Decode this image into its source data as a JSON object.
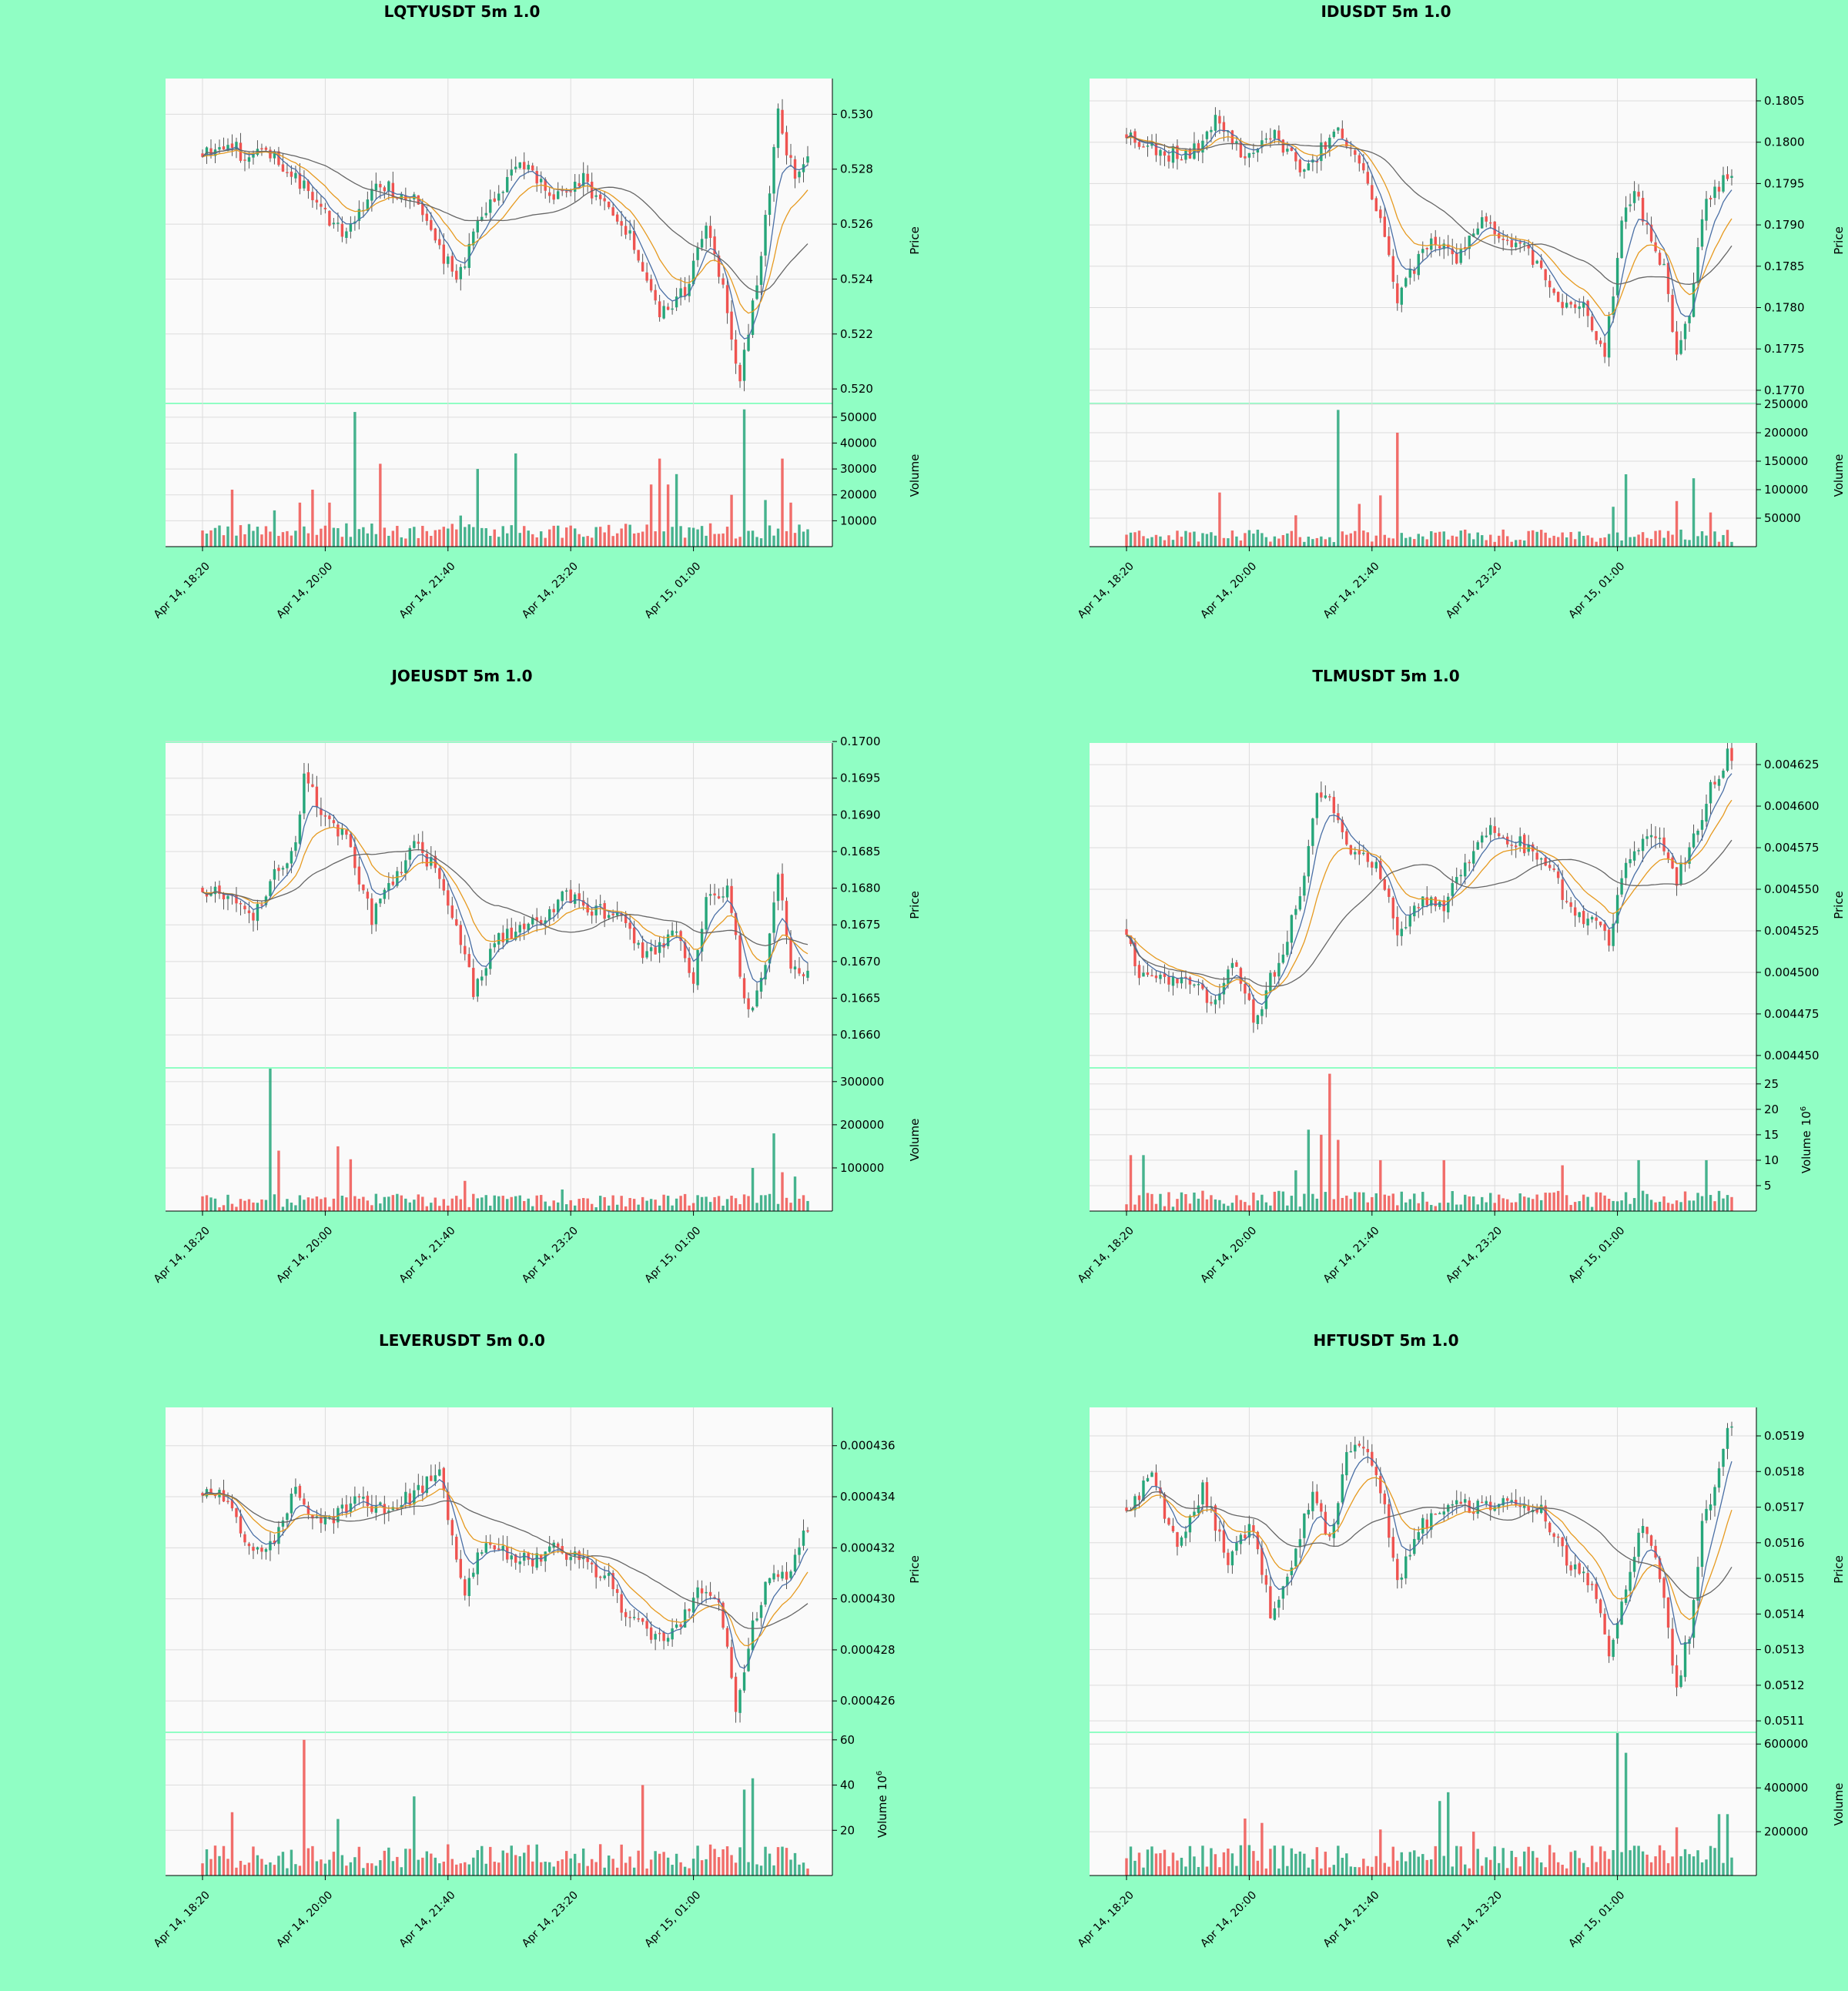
{
  "chart_data": [
    {
      "type": "candlestick",
      "title": "LQTYUSDT 5m 1.0",
      "ylabel": "Price",
      "vol_label": "Volume",
      "x_ticks": [
        "Apr 14, 18:20",
        "Apr 14, 20:00",
        "Apr 14, 21:40",
        "Apr 14, 23:20",
        "Apr 15, 01:00"
      ],
      "price_ylim": [
        0.5195,
        0.5313
      ],
      "price_ticks": [
        "0.520",
        "0.522",
        "0.524",
        "0.526",
        "0.528",
        "0.530"
      ],
      "vol_ylim": [
        0,
        55000
      ],
      "vol_ticks": [
        "10000",
        "20000",
        "30000",
        "40000",
        "50000"
      ],
      "volume_exponent": "",
      "price_path": [
        [
          0,
          0.5286
        ],
        [
          6,
          0.529
        ],
        [
          11,
          0.5283
        ],
        [
          14,
          0.529
        ],
        [
          20,
          0.528
        ],
        [
          27,
          0.5268
        ],
        [
          33,
          0.5256
        ],
        [
          42,
          0.5275
        ],
        [
          50,
          0.5268
        ],
        [
          60,
          0.524
        ],
        [
          66,
          0.5262
        ],
        [
          75,
          0.5282
        ],
        [
          84,
          0.527
        ],
        [
          90,
          0.5276
        ],
        [
          101,
          0.5255
        ],
        [
          108,
          0.5229
        ],
        [
          114,
          0.5235
        ],
        [
          119,
          0.526
        ],
        [
          123,
          0.5238
        ],
        [
          127,
          0.5203
        ],
        [
          132,
          0.5248
        ],
        [
          136,
          0.53
        ],
        [
          140,
          0.5275
        ],
        [
          142,
          0.5282
        ]
      ],
      "volume_spikes": [
        [
          7,
          22000
        ],
        [
          17,
          14000
        ],
        [
          23,
          17000
        ],
        [
          26,
          22000
        ],
        [
          30,
          17000
        ],
        [
          36,
          52000
        ],
        [
          42,
          32000
        ],
        [
          61,
          12000
        ],
        [
          65,
          30000
        ],
        [
          74,
          36000
        ],
        [
          106,
          24000
        ],
        [
          108,
          34000
        ],
        [
          110,
          24000
        ],
        [
          112,
          28000
        ],
        [
          125,
          20000
        ],
        [
          128,
          53000
        ],
        [
          133,
          18000
        ],
        [
          137,
          34000
        ],
        [
          139,
          17000
        ]
      ],
      "vol_base": [
        3000,
        9000
      ],
      "seed": 11
    },
    {
      "type": "candlestick",
      "title": "IDUSDT 5m 1.0",
      "ylabel": "Price",
      "vol_label": "Volume",
      "x_ticks": [
        "Apr 14, 18:20",
        "Apr 14, 20:00",
        "Apr 14, 21:40",
        "Apr 14, 23:20",
        "Apr 15, 01:00"
      ],
      "price_ylim": [
        0.17685,
        0.18077
      ],
      "price_ticks": [
        "0.1770",
        "0.1775",
        "0.1780",
        "0.1785",
        "0.1790",
        "0.1795",
        "0.1800",
        "0.1805"
      ],
      "vol_ylim": [
        0,
        250000
      ],
      "vol_ticks": [
        "50000",
        "100000",
        "150000",
        "200000",
        "250000"
      ],
      "volume_exponent": "",
      "price_path": [
        [
          0,
          0.1801
        ],
        [
          10,
          0.17985
        ],
        [
          16,
          0.1799
        ],
        [
          22,
          0.1803
        ],
        [
          28,
          0.1798
        ],
        [
          35,
          0.1801
        ],
        [
          42,
          0.1796
        ],
        [
          46,
          0.1799
        ],
        [
          50,
          0.1802
        ],
        [
          56,
          0.1797
        ],
        [
          60,
          0.179
        ],
        [
          64,
          0.1781
        ],
        [
          72,
          0.1789
        ],
        [
          78,
          0.1786
        ],
        [
          84,
          0.1791
        ],
        [
          90,
          0.1788
        ],
        [
          95,
          0.1787
        ],
        [
          101,
          0.1781
        ],
        [
          108,
          0.178
        ],
        [
          113,
          0.17745
        ],
        [
          117,
          0.179
        ],
        [
          120,
          0.1794
        ],
        [
          124,
          0.1788
        ],
        [
          127,
          0.1785
        ],
        [
          130,
          0.17745
        ],
        [
          133,
          0.178
        ],
        [
          137,
          0.1793
        ],
        [
          142,
          0.1796
        ]
      ],
      "volume_spikes": [
        [
          22,
          95000
        ],
        [
          40,
          55000
        ],
        [
          50,
          240000
        ],
        [
          55,
          75000
        ],
        [
          60,
          90000
        ],
        [
          64,
          200000
        ],
        [
          115,
          70000
        ],
        [
          118,
          127000
        ],
        [
          130,
          80000
        ],
        [
          134,
          120000
        ],
        [
          138,
          60000
        ]
      ],
      "vol_base": [
        8000,
        30000
      ],
      "seed": 23
    },
    {
      "type": "candlestick",
      "title": "JOEUSDT 5m 1.0",
      "ylabel": "Price",
      "vol_label": "Volume",
      "x_ticks": [
        "Apr 14, 18:20",
        "Apr 14, 20:00",
        "Apr 14, 21:40",
        "Apr 14, 23:20",
        "Apr 15, 01:00"
      ],
      "price_ylim": [
        0.16556,
        0.16998
      ],
      "price_ticks": [
        "0.1660",
        "0.1665",
        "0.1670",
        "0.1675",
        "0.1680",
        "0.1685",
        "0.1690",
        "0.1695",
        "0.1700"
      ],
      "vol_ylim": [
        0,
        330000
      ],
      "vol_ticks": [
        "100000",
        "200000",
        "300000"
      ],
      "volume_exponent": "",
      "price_path": [
        [
          0,
          0.168
        ],
        [
          8,
          0.1679
        ],
        [
          12,
          0.1676
        ],
        [
          16,
          0.1681
        ],
        [
          22,
          0.1686
        ],
        [
          24,
          0.1696
        ],
        [
          28,
          0.169
        ],
        [
          34,
          0.1687
        ],
        [
          40,
          0.1676
        ],
        [
          45,
          0.1681
        ],
        [
          50,
          0.1686
        ],
        [
          56,
          0.1682
        ],
        [
          62,
          0.1671
        ],
        [
          64,
          0.1666
        ],
        [
          70,
          0.1673
        ],
        [
          78,
          0.1675
        ],
        [
          86,
          0.1679
        ],
        [
          92,
          0.1677
        ],
        [
          100,
          0.1676
        ],
        [
          104,
          0.167
        ],
        [
          112,
          0.1674
        ],
        [
          116,
          0.1668
        ],
        [
          119,
          0.1679
        ],
        [
          124,
          0.168
        ],
        [
          127,
          0.1669
        ],
        [
          129,
          0.1663
        ],
        [
          133,
          0.167
        ],
        [
          136,
          0.1682
        ],
        [
          139,
          0.167
        ],
        [
          142,
          0.1669
        ]
      ],
      "volume_spikes": [
        [
          16,
          330000
        ],
        [
          18,
          140000
        ],
        [
          32,
          150000
        ],
        [
          35,
          120000
        ],
        [
          62,
          70000
        ],
        [
          85,
          50000
        ],
        [
          130,
          100000
        ],
        [
          135,
          180000
        ],
        [
          137,
          90000
        ],
        [
          140,
          80000
        ]
      ],
      "vol_base": [
        8000,
        40000
      ],
      "seed": 37
    },
    {
      "type": "candlestick",
      "title": "TLMUSDT 5m 1.0",
      "ylabel": "Price",
      "vol_label": "Volume",
      "x_ticks": [
        "Apr 14, 18:20",
        "Apr 14, 20:00",
        "Apr 14, 21:40",
        "Apr 14, 23:20",
        "Apr 15, 01:00"
      ],
      "price_ylim": [
        0.004443,
        0.004638
      ],
      "price_ticks": [
        "0.004450",
        "0.004475",
        "0.004500",
        "0.004525",
        "0.004550",
        "0.004575",
        "0.004600",
        "0.004625"
      ],
      "vol_ylim": [
        0,
        28
      ],
      "vol_ticks": [
        "5",
        "10",
        "15",
        "20",
        "25"
      ],
      "volume_exponent": "6",
      "price_path": [
        [
          0,
          0.004525
        ],
        [
          3,
          0.004495
        ],
        [
          10,
          0.004495
        ],
        [
          16,
          0.00449
        ],
        [
          20,
          0.004485
        ],
        [
          26,
          0.004505
        ],
        [
          30,
          0.00447
        ],
        [
          34,
          0.004495
        ],
        [
          38,
          0.00452
        ],
        [
          42,
          0.00456
        ],
        [
          45,
          0.00461
        ],
        [
          49,
          0.0046
        ],
        [
          52,
          0.004575
        ],
        [
          56,
          0.00457
        ],
        [
          60,
          0.00456
        ],
        [
          64,
          0.004525
        ],
        [
          70,
          0.004545
        ],
        [
          75,
          0.00454
        ],
        [
          80,
          0.004565
        ],
        [
          86,
          0.004585
        ],
        [
          92,
          0.00458
        ],
        [
          100,
          0.004565
        ],
        [
          104,
          0.00454
        ],
        [
          110,
          0.00453
        ],
        [
          114,
          0.00452
        ],
        [
          118,
          0.004565
        ],
        [
          123,
          0.004585
        ],
        [
          126,
          0.00458
        ],
        [
          130,
          0.004555
        ],
        [
          134,
          0.00458
        ],
        [
          138,
          0.00461
        ],
        [
          142,
          0.00463
        ]
      ],
      "volume_spikes": [
        [
          1,
          11000000
        ],
        [
          4,
          11000000
        ],
        [
          40,
          8000000
        ],
        [
          43,
          16000000
        ],
        [
          46,
          15000000
        ],
        [
          48,
          27000000
        ],
        [
          50,
          14000000
        ],
        [
          60,
          10000000
        ],
        [
          75,
          10000000
        ],
        [
          103,
          9000000
        ],
        [
          121,
          10000000
        ],
        [
          137,
          10000000
        ]
      ],
      "vol_base": [
        800000,
        4000000
      ],
      "seed": 41
    },
    {
      "type": "candlestick",
      "title": "LEVERUSDT 5m 0.0",
      "ylabel": "Price",
      "vol_label": "Volume",
      "x_ticks": [
        "Apr 14, 18:20",
        "Apr 14, 20:00",
        "Apr 14, 21:40",
        "Apr 14, 23:20",
        "Apr 15, 01:00"
      ],
      "price_ylim": [
        0.0004248,
        0.0004375
      ],
      "price_ticks": [
        "0.000426",
        "0.000428",
        "0.000430",
        "0.000432",
        "0.000434",
        "0.000436"
      ],
      "vol_ylim": [
        0,
        63
      ],
      "vol_ticks": [
        "20",
        "40",
        "60"
      ],
      "volume_exponent": "6",
      "price_path": [
        [
          0,
          0.0004342
        ],
        [
          6,
          0.000434
        ],
        [
          10,
          0.0004325
        ],
        [
          14,
          0.0004318
        ],
        [
          18,
          0.0004325
        ],
        [
          22,
          0.0004345
        ],
        [
          26,
          0.000433
        ],
        [
          30,
          0.000433
        ],
        [
          36,
          0.000434
        ],
        [
          42,
          0.0004335
        ],
        [
          50,
          0.000434
        ],
        [
          56,
          0.0004352
        ],
        [
          58,
          0.000433
        ],
        [
          62,
          0.00043
        ],
        [
          66,
          0.000432
        ],
        [
          72,
          0.0004318
        ],
        [
          78,
          0.0004315
        ],
        [
          84,
          0.000432
        ],
        [
          90,
          0.0004315
        ],
        [
          96,
          0.0004308
        ],
        [
          100,
          0.0004292
        ],
        [
          104,
          0.0004288
        ],
        [
          110,
          0.0004282
        ],
        [
          114,
          0.0004295
        ],
        [
          118,
          0.0004305
        ],
        [
          122,
          0.0004298
        ],
        [
          124,
          0.000428
        ],
        [
          126,
          0.0004255
        ],
        [
          130,
          0.000429
        ],
        [
          134,
          0.000431
        ],
        [
          138,
          0.000431
        ],
        [
          142,
          0.0004325
        ]
      ],
      "volume_spikes": [
        [
          7,
          28000000
        ],
        [
          24,
          60000000
        ],
        [
          32,
          25000000
        ],
        [
          50,
          35000000
        ],
        [
          104,
          40000000
        ],
        [
          128,
          38000000
        ],
        [
          130,
          43000000
        ]
      ],
      "vol_base": [
        3000000,
        14000000
      ],
      "seed": 53
    },
    {
      "type": "candlestick",
      "title": "HFTUSDT 5m 1.0",
      "ylabel": "Price",
      "vol_label": "Volume",
      "x_ticks": [
        "Apr 14, 18:20",
        "Apr 14, 20:00",
        "Apr 14, 21:40",
        "Apr 14, 23:20",
        "Apr 15, 01:00"
      ],
      "price_ylim": [
        0.05107,
        0.05198
      ],
      "price_ticks": [
        "0.0511",
        "0.0512",
        "0.0513",
        "0.0514",
        "0.0515",
        "0.0516",
        "0.0517",
        "0.0518",
        "0.0519"
      ],
      "vol_ylim": [
        0,
        650000
      ],
      "vol_ticks": [
        "200000",
        "400000",
        "600000"
      ],
      "volume_exponent": "",
      "price_path": [
        [
          0,
          0.0517
        ],
        [
          6,
          0.05178
        ],
        [
          12,
          0.0516
        ],
        [
          18,
          0.05175
        ],
        [
          24,
          0.05155
        ],
        [
          30,
          0.05165
        ],
        [
          34,
          0.0514
        ],
        [
          38,
          0.0515
        ],
        [
          44,
          0.05175
        ],
        [
          48,
          0.0516
        ],
        [
          52,
          0.05185
        ],
        [
          56,
          0.05188
        ],
        [
          60,
          0.05175
        ],
        [
          64,
          0.0515
        ],
        [
          70,
          0.05165
        ],
        [
          76,
          0.0517
        ],
        [
          84,
          0.0517
        ],
        [
          92,
          0.05172
        ],
        [
          98,
          0.0517
        ],
        [
          104,
          0.05155
        ],
        [
          110,
          0.05148
        ],
        [
          114,
          0.0513
        ],
        [
          118,
          0.05148
        ],
        [
          122,
          0.05165
        ],
        [
          126,
          0.0515
        ],
        [
          130,
          0.0512
        ],
        [
          133,
          0.05135
        ],
        [
          136,
          0.05165
        ],
        [
          140,
          0.0518
        ],
        [
          142,
          0.05192
        ]
      ],
      "volume_spikes": [
        [
          28,
          260000
        ],
        [
          32,
          240000
        ],
        [
          60,
          210000
        ],
        [
          74,
          340000
        ],
        [
          76,
          380000
        ],
        [
          82,
          200000
        ],
        [
          116,
          650000
        ],
        [
          118,
          560000
        ],
        [
          122,
          110000
        ],
        [
          130,
          220000
        ],
        [
          140,
          280000
        ],
        [
          142,
          280000
        ]
      ],
      "vol_base": [
        30000,
        140000
      ],
      "seed": 67
    }
  ]
}
